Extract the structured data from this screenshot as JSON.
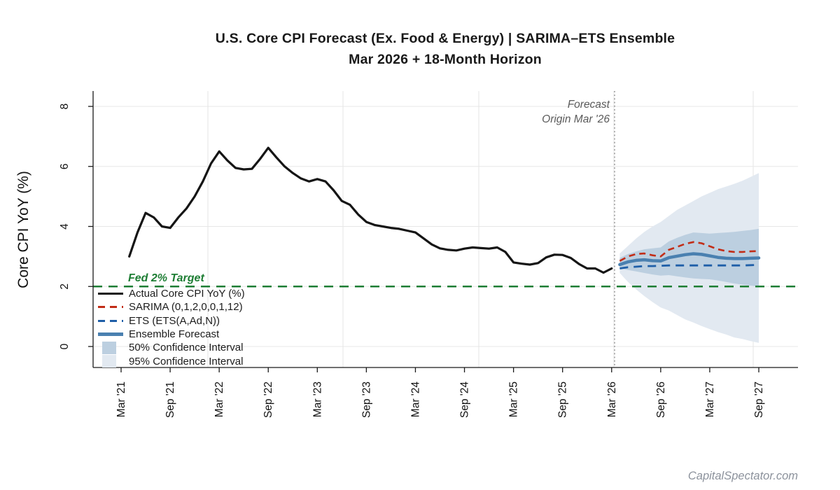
{
  "title": {
    "line1": "U.S. Core CPI Forecast (Ex. Food & Energy)  |  SARIMA–ETS Ensemble",
    "line2": "Mar 2026 + 18-Month Horizon"
  },
  "axes": {
    "y_label": "Core CPI YoY (%)",
    "y_ticks": [
      0,
      2,
      4,
      6,
      8
    ],
    "x_ticks": [
      "Mar '21",
      "Sep '21",
      "Mar '22",
      "Sep '22",
      "Mar '23",
      "Sep '23",
      "Mar '24",
      "Sep '24",
      "Mar '25",
      "Sep '25",
      "Mar '26",
      "Sep '26",
      "Mar '27",
      "Sep '27"
    ]
  },
  "annotations": {
    "forecast_origin_line1": "Forecast",
    "forecast_origin_line2": "Origin Mar '26",
    "fed_target_label": "Fed 2% Target",
    "watermark": "CapitalSpectator.com"
  },
  "legend": {
    "items": [
      {
        "label": "Actual Core CPI YoY (%)",
        "swatch": "solid",
        "color": "#151515",
        "thickness": 3.5
      },
      {
        "label": "SARIMA (0,1,2,0,0,1,12)",
        "swatch": "dashed",
        "color": "#c22d17",
        "thickness": 3
      },
      {
        "label": "ETS (ETS(A,Ad,N))",
        "swatch": "dashed",
        "color": "#1f5fa8",
        "thickness": 3
      },
      {
        "label": "Ensemble Forecast",
        "swatch": "solid",
        "color": "#4a80b0",
        "thickness": 5
      },
      {
        "label": "50% Confidence Interval",
        "swatch": "box",
        "color": "#bccfe0"
      },
      {
        "label": "95% Confidence Interval",
        "swatch": "box",
        "color": "#e2e9f1"
      }
    ]
  },
  "colors": {
    "actual": "#151515",
    "sarima": "#c22d17",
    "ets": "#1f5fa8",
    "ensemble": "#4a80b0",
    "ci50": "#bccfe0",
    "ci95": "#e2e9f1",
    "fed_target": "#1e7e34",
    "origin_line": "#8a8a8a",
    "grid": "#e7e7e7",
    "axis": "#1a1a1a"
  },
  "chart_data": {
    "type": "line",
    "title": "U.S. Core CPI Forecast (Ex. Food & Energy) | SARIMA-ETS Ensemble, Mar 2026 + 18-Month Horizon",
    "xlabel": "",
    "ylabel": "Core CPI YoY (%)",
    "ylim": [
      0,
      8
    ],
    "x_range": [
      "Mar 2021",
      "Sep 2027"
    ],
    "grid": true,
    "legend_position": "left-middle",
    "fed_target_value": 2,
    "forecast_origin": "Mar 2026",
    "actual": {
      "name": "Actual Core CPI YoY (%)",
      "start_month": "Apr 2021",
      "end_month": "Mar 2026",
      "values": [
        3.0,
        3.8,
        4.45,
        4.3,
        4.0,
        3.95,
        4.3,
        4.6,
        5.0,
        5.5,
        6.1,
        6.5,
        6.2,
        5.95,
        5.9,
        5.92,
        6.25,
        6.62,
        6.3,
        6.0,
        5.78,
        5.6,
        5.5,
        5.58,
        5.5,
        5.2,
        4.85,
        4.72,
        4.4,
        4.15,
        4.05,
        4.0,
        3.95,
        3.92,
        3.86,
        3.8,
        3.6,
        3.4,
        3.27,
        3.22,
        3.2,
        3.26,
        3.3,
        3.28,
        3.26,
        3.3,
        3.15,
        2.8,
        2.76,
        2.73,
        2.78,
        2.97,
        3.06,
        3.05,
        2.95,
        2.75,
        2.6,
        2.6,
        2.46,
        2.6
      ]
    },
    "forecast": {
      "start_month": "Apr 2026",
      "end_month": "Sep 2027",
      "horizon_months": 18,
      "series": [
        {
          "name": "SARIMA (0,1,2,0,0,1,12)",
          "values": [
            2.85,
            3.0,
            3.08,
            3.1,
            3.04,
            3.0,
            3.22,
            3.32,
            3.42,
            3.48,
            3.44,
            3.34,
            3.24,
            3.18,
            3.15,
            3.15,
            3.17,
            3.18
          ]
        },
        {
          "name": "ETS (ETS(A,Ad,N))",
          "values": [
            2.6,
            2.64,
            2.66,
            2.68,
            2.68,
            2.69,
            2.7,
            2.7,
            2.7,
            2.7,
            2.7,
            2.7,
            2.7,
            2.7,
            2.7,
            2.7,
            2.71,
            2.72
          ]
        },
        {
          "name": "Ensemble Forecast",
          "values": [
            2.73,
            2.82,
            2.87,
            2.89,
            2.86,
            2.85,
            2.96,
            3.01,
            3.06,
            3.09,
            3.07,
            3.02,
            2.97,
            2.94,
            2.93,
            2.93,
            2.94,
            2.95
          ]
        }
      ],
      "ci50_upper": [
        2.95,
        3.08,
        3.17,
        3.24,
        3.27,
        3.3,
        3.5,
        3.62,
        3.72,
        3.8,
        3.78,
        3.76,
        3.78,
        3.8,
        3.82,
        3.85,
        3.88,
        3.92
      ],
      "ci50_lower": [
        2.6,
        2.55,
        2.5,
        2.45,
        2.4,
        2.36,
        2.38,
        2.34,
        2.3,
        2.27,
        2.25,
        2.24,
        2.2,
        2.15,
        2.1,
        2.06,
        2.03,
        2.0
      ],
      "ci95_upper": [
        3.1,
        3.35,
        3.6,
        3.82,
        4.0,
        4.15,
        4.35,
        4.55,
        4.7,
        4.85,
        5.0,
        5.12,
        5.24,
        5.33,
        5.42,
        5.52,
        5.65,
        5.78
      ],
      "ci95_lower": [
        2.45,
        2.15,
        1.9,
        1.68,
        1.48,
        1.3,
        1.2,
        1.05,
        0.9,
        0.8,
        0.68,
        0.58,
        0.48,
        0.4,
        0.3,
        0.25,
        0.18,
        0.12
      ]
    }
  }
}
